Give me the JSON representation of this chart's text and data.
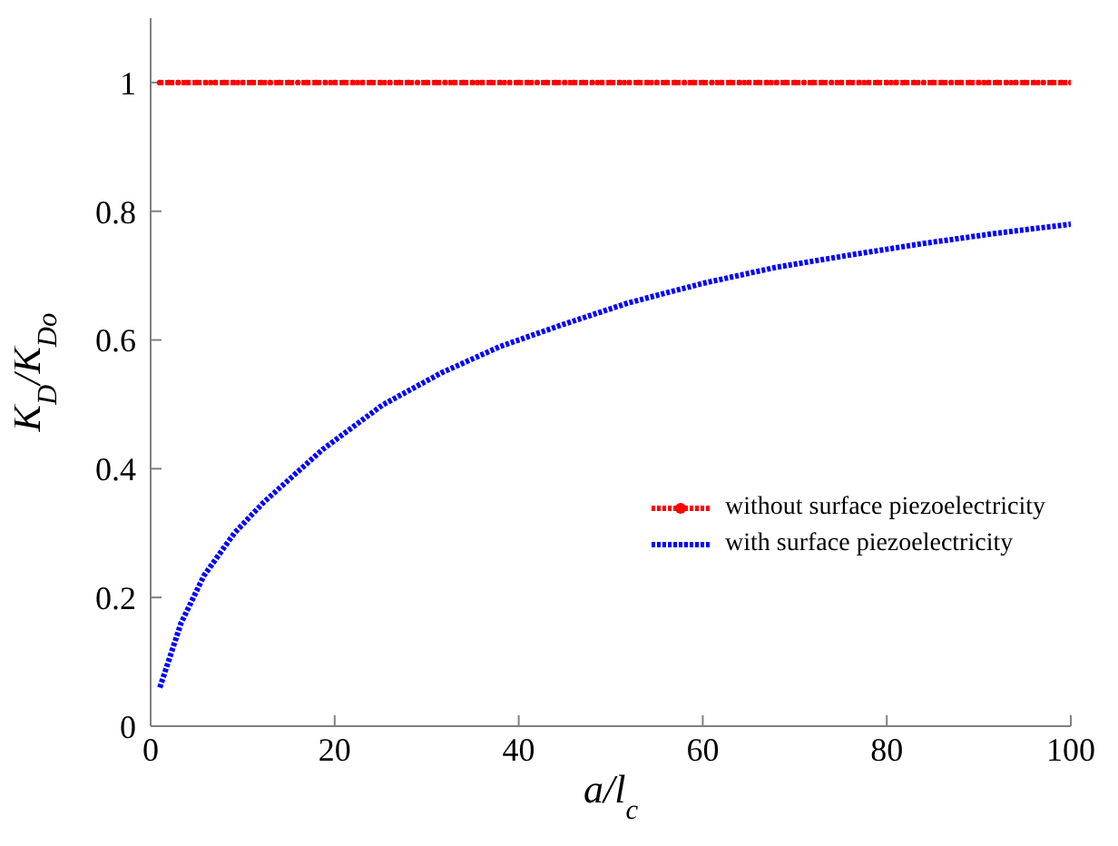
{
  "chart_data": {
    "type": "line",
    "xlabel": "a/l$_{c}$",
    "ylabel": "K$_{D}$/K$_{Do}$",
    "xlim": [
      0,
      100
    ],
    "xticks": [
      0,
      20,
      40,
      60,
      80,
      100
    ],
    "ylim": [
      0,
      1.1
    ],
    "yticks": [
      0,
      0.2,
      0.4,
      0.6,
      0.8,
      1
    ],
    "grid": false,
    "legend": "right",
    "line_style": "dotted",
    "series": [
      {
        "name": "without surface piezoelectricity",
        "color": "#ff0000",
        "marker": "circle",
        "x": [
          1,
          2,
          3,
          4,
          5,
          6,
          7,
          8,
          9,
          10,
          11,
          12,
          13,
          14,
          15,
          16,
          17,
          18,
          19,
          20,
          21,
          22,
          23,
          24,
          25,
          26,
          27,
          28,
          29,
          30,
          31,
          32,
          33,
          34,
          35,
          36,
          37,
          38,
          39,
          40,
          41,
          42,
          43,
          44,
          45,
          46,
          47,
          48,
          49,
          50,
          51,
          52,
          53,
          54,
          55,
          56,
          57,
          58,
          59,
          60,
          61,
          62,
          63,
          64,
          65,
          66,
          67,
          68,
          69,
          70,
          71,
          72,
          73,
          74,
          75,
          76,
          77,
          78,
          79,
          80,
          81,
          82,
          83,
          84,
          85,
          86,
          87,
          88,
          89,
          90,
          91,
          92,
          93,
          94,
          95,
          96,
          97,
          98,
          99,
          100
        ],
        "values": [
          1,
          1,
          1,
          1,
          1,
          1,
          1,
          1,
          1,
          1,
          1,
          1,
          1,
          1,
          1,
          1,
          1,
          1,
          1,
          1,
          1,
          1,
          1,
          1,
          1,
          1,
          1,
          1,
          1,
          1,
          1,
          1,
          1,
          1,
          1,
          1,
          1,
          1,
          1,
          1,
          1,
          1,
          1,
          1,
          1,
          1,
          1,
          1,
          1,
          1,
          1,
          1,
          1,
          1,
          1,
          1,
          1,
          1,
          1,
          1,
          1,
          1,
          1,
          1,
          1,
          1,
          1,
          1,
          1,
          1,
          1,
          1,
          1,
          1,
          1,
          1,
          1,
          1,
          1,
          1,
          1,
          1,
          1,
          1,
          1,
          1,
          1,
          1,
          1,
          1,
          1,
          1,
          1,
          1,
          1,
          1,
          1,
          1,
          1,
          1
        ]
      },
      {
        "name": "with surface piezoelectricity",
        "color": "#0000ff",
        "marker": "none",
        "x": [
          1,
          3.3,
          5.8,
          9.1,
          12.3,
          18.7,
          25.2,
          31.6,
          38,
          45,
          52,
          60,
          68,
          76,
          84,
          92,
          100
        ],
        "values": [
          0.06,
          0.16,
          0.234,
          0.3,
          0.348,
          0.43,
          0.499,
          0.549,
          0.59,
          0.625,
          0.658,
          0.688,
          0.713,
          0.732,
          0.75,
          0.766,
          0.78
        ]
      }
    ]
  }
}
